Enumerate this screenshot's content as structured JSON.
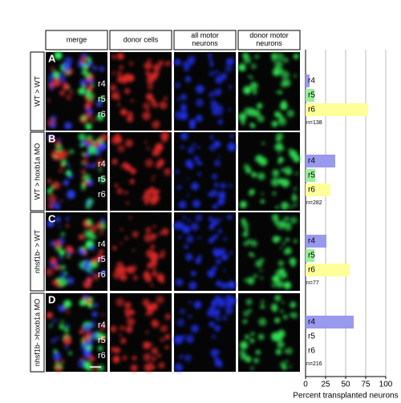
{
  "panels": {
    "column_headers": [
      "merge",
      "donor cells",
      "all motor neurons",
      "donor motor neurons"
    ],
    "rows": [
      {
        "letter": "A",
        "label": "WT > WT"
      },
      {
        "letter": "B",
        "label": "WT > hoxb1a MO"
      },
      {
        "letter": "C",
        "label": "nhsf1b- > WT"
      },
      {
        "letter": "D",
        "label": "nhsf1b- >hoxb1a MO"
      }
    ],
    "rhombomeres": [
      "r4",
      "r5",
      "r6"
    ]
  },
  "chart_data": [
    {
      "type": "bar",
      "orientation": "horizontal",
      "categories": [
        "r4",
        "r5",
        "r6"
      ],
      "values": [
        5,
        11,
        78
      ],
      "colors": [
        "#9999ee",
        "#99ee99",
        "#ffff99"
      ],
      "annotation": "n=138"
    },
    {
      "type": "bar",
      "orientation": "horizontal",
      "categories": [
        "r4",
        "r5",
        "r6"
      ],
      "values": [
        37,
        12,
        31
      ],
      "colors": [
        "#9999ee",
        "#99ee99",
        "#ffff99"
      ],
      "annotation": "n=282"
    },
    {
      "type": "bar",
      "orientation": "horizontal",
      "categories": [
        "r4",
        "r5",
        "r6"
      ],
      "values": [
        26,
        11,
        55
      ],
      "colors": [
        "#9999ee",
        "#99ee99",
        "#ffff99"
      ],
      "annotation": "n=77"
    },
    {
      "type": "bar",
      "orientation": "horizontal",
      "categories": [
        "r4",
        "r5",
        "r6"
      ],
      "values": [
        60,
        0,
        0
      ],
      "colors": [
        "#9999ee",
        "#99ee99",
        "#ffff99"
      ],
      "annotation": "n=216",
      "xlim": [
        0,
        100
      ],
      "xticks": [
        0,
        25,
        50,
        75,
        100
      ],
      "x_label": "Percent transplanted neurons",
      "grid": true
    }
  ]
}
